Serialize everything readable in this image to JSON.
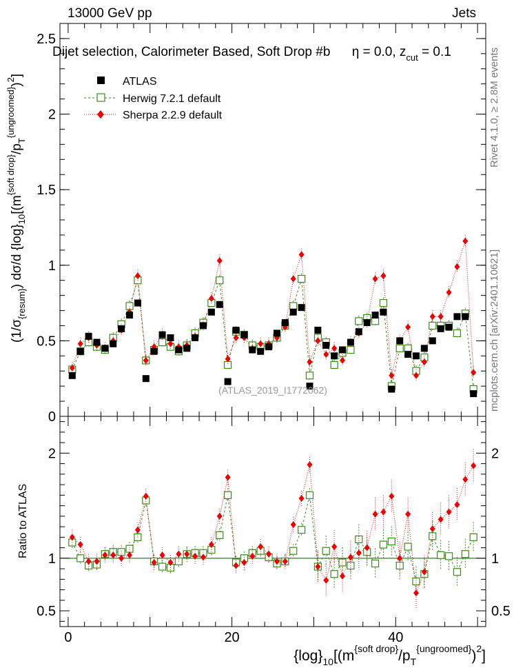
{
  "header": {
    "left": "13000 GeV pp",
    "right": "Jets"
  },
  "side_labels": {
    "rivet": "Rivet 4.1.0, ≥ 2.8M events",
    "mcplots": "mcplots.cern.ch [arXiv:2401.10621]"
  },
  "colors": {
    "atlas": "#000000",
    "herwig": "#3a8a1a",
    "sherpa": "#ee0000",
    "refline": "#2e7d22"
  },
  "chart_data": [
    {
      "type": "scatter",
      "title": "Dijet selection, Calorimeter Based, Soft Drop #b    η = 0.0, z_cut = 0.1",
      "title_parts": {
        "main": "Dijet selection, Calorimeter Based, Soft Drop #b",
        "eta": "η = 0.0, z",
        "sub": "cut",
        "tail": " = 0.1"
      },
      "watermark": "(ATLAS_2019_I1772062)",
      "ylabel": "(1/σ_{resum}) dσ/d {log}_{10}[(m^{soft drop}/p_T^{ungroomed})^2]",
      "ylabel_parts": {
        "a": "(1/σ",
        "b": "{resum}",
        "c": ") dσ/d {log}",
        "d": "10",
        "e": "[(m",
        "f": "{soft drop}",
        "g": "/p",
        "h": "T",
        "i": "{ungroomed}",
        "j": ")",
        "k": "2",
        "l": "]"
      },
      "xlim": [
        -1,
        51
      ],
      "ylim": [
        0,
        2.6
      ],
      "yticks": [
        0,
        0.5,
        1,
        1.5,
        2,
        2.5
      ],
      "ytick_labels": [
        "0",
        "0.5",
        "1",
        "1.5",
        "2",
        "2.5"
      ],
      "legend": {
        "position": "top-left",
        "entries": [
          "ATLAS",
          "Herwig 7.2.1 default",
          "Sherpa 2.2.9 default"
        ]
      },
      "x": [
        0.5,
        1.5,
        2.5,
        3.5,
        4.5,
        5.5,
        6.5,
        7.5,
        8.5,
        9.5,
        10.5,
        11.5,
        12.5,
        13.5,
        14.5,
        15.5,
        16.5,
        17.5,
        18.5,
        19.5,
        20.5,
        21.5,
        22.5,
        23.5,
        24.5,
        25.5,
        26.5,
        27.5,
        28.5,
        29.5,
        30.5,
        31.5,
        32.5,
        33.5,
        34.5,
        35.5,
        36.5,
        37.5,
        38.5,
        39.5,
        40.5,
        41.5,
        42.5,
        43.5,
        44.5,
        45.5,
        46.5,
        47.5,
        48.5,
        49.5
      ],
      "series": [
        {
          "name": "ATLAS",
          "marker": "filled-square",
          "values": [
            0.27,
            0.43,
            0.53,
            0.49,
            0.45,
            0.48,
            0.58,
            0.67,
            0.75,
            0.25,
            0.43,
            0.54,
            0.52,
            0.44,
            0.45,
            0.52,
            0.6,
            0.69,
            0.74,
            0.23,
            0.57,
            0.54,
            0.44,
            0.43,
            0.46,
            0.55,
            0.62,
            0.69,
            0.72,
            0.2,
            0.57,
            0.47,
            0.4,
            0.44,
            0.49,
            0.56,
            0.62,
            0.67,
            0.69,
            0.18,
            0.5,
            0.41,
            0.4,
            0.45,
            0.5,
            0.58,
            0.59,
            0.66,
            0.66,
            0.15
          ]
        },
        {
          "name": "Herwig 7.2.1 default",
          "marker": "open-square",
          "values": [
            0.31,
            0.43,
            0.49,
            0.46,
            0.44,
            0.52,
            0.61,
            0.73,
            0.9,
            0.37,
            0.44,
            0.49,
            0.46,
            0.43,
            0.47,
            0.55,
            0.62,
            0.75,
            0.9,
            0.34,
            0.56,
            0.54,
            0.47,
            0.46,
            0.47,
            0.52,
            0.6,
            0.73,
            0.91,
            0.27,
            0.52,
            0.49,
            0.34,
            0.42,
            0.44,
            0.63,
            0.65,
            0.63,
            0.75,
            0.2,
            0.45,
            0.45,
            0.3,
            0.39,
            0.6,
            0.6,
            0.6,
            0.55,
            0.68,
            0.18
          ]
        },
        {
          "name": "Sherpa 2.2.9 default",
          "marker": "red-diamond",
          "values": [
            0.32,
            0.48,
            0.52,
            0.47,
            0.45,
            0.5,
            0.57,
            0.69,
            0.93,
            0.37,
            0.46,
            0.54,
            0.48,
            0.46,
            0.47,
            0.53,
            0.6,
            0.78,
            1.03,
            0.38,
            0.52,
            0.52,
            0.45,
            0.48,
            0.48,
            0.52,
            0.59,
            0.91,
            1.07,
            0.36,
            0.5,
            0.41,
            0.45,
            0.37,
            0.49,
            0.55,
            0.62,
            0.91,
            0.93,
            0.27,
            0.5,
            0.59,
            0.27,
            0.36,
            0.66,
            0.66,
            0.82,
            0.99,
            1.16,
            0.29
          ]
        }
      ]
    },
    {
      "type": "line",
      "ylabel": "Ratio to ATLAS",
      "xlabel": "{log}_{10}[(m^{soft drop}/p_T^{ungroomed})^2]",
      "xlabel_parts": {
        "a": "{log}",
        "b": "10",
        "c": "[(m",
        "d": "{soft drop}",
        "e": "/p",
        "f": "T",
        "g": "{ungroomed}",
        "h": ")",
        "i": "2",
        "j": "]"
      },
      "xlim": [
        -1,
        51
      ],
      "ylim": [
        0.35,
        2.35
      ],
      "xticks": [
        0,
        20,
        40
      ],
      "xtick_labels": [
        "0",
        "20",
        "40"
      ],
      "yticks": [
        0.5,
        1,
        2
      ],
      "ytick_labels": [
        "0.5",
        "1",
        "2"
      ],
      "series": [
        {
          "name": "Herwig 7.2.1 default",
          "values": [
            1.15,
            1.0,
            0.93,
            0.94,
            1.04,
            1.06,
            1.06,
            1.09,
            1.2,
            1.55,
            0.97,
            0.92,
            0.91,
            0.97,
            1.04,
            1.05,
            1.05,
            1.08,
            1.22,
            1.6,
            0.96,
            1.0,
            1.05,
            1.07,
            1.01,
            0.95,
            0.97,
            1.07,
            1.27,
            1.6,
            0.92,
            1.07,
            0.85,
            0.96,
            0.93,
            1.18,
            1.06,
            0.95,
            1.13,
            1.16,
            0.93,
            1.11,
            0.78,
            0.85,
            1.21,
            1.03,
            1.02,
            0.87,
            1.04,
            1.2
          ]
        },
        {
          "name": "Sherpa 2.2.9 default",
          "values": [
            1.2,
            1.13,
            0.97,
            0.97,
            1.03,
            1.03,
            1.0,
            1.03,
            1.27,
            1.59,
            0.96,
            1.03,
            0.96,
            1.04,
            1.04,
            1.02,
            1.01,
            1.13,
            1.4,
            1.77,
            0.93,
            0.96,
            1.02,
            1.11,
            1.04,
            0.97,
            0.97,
            1.32,
            1.57,
            1.89,
            0.92,
            0.79,
            1.11,
            0.83,
            1.01,
            1.05,
            1.1,
            1.42,
            1.44,
            1.59,
            1.0,
            1.42,
            0.67,
            0.87,
            1.28,
            1.37,
            1.44,
            1.51,
            1.75,
            1.88
          ]
        }
      ]
    }
  ]
}
